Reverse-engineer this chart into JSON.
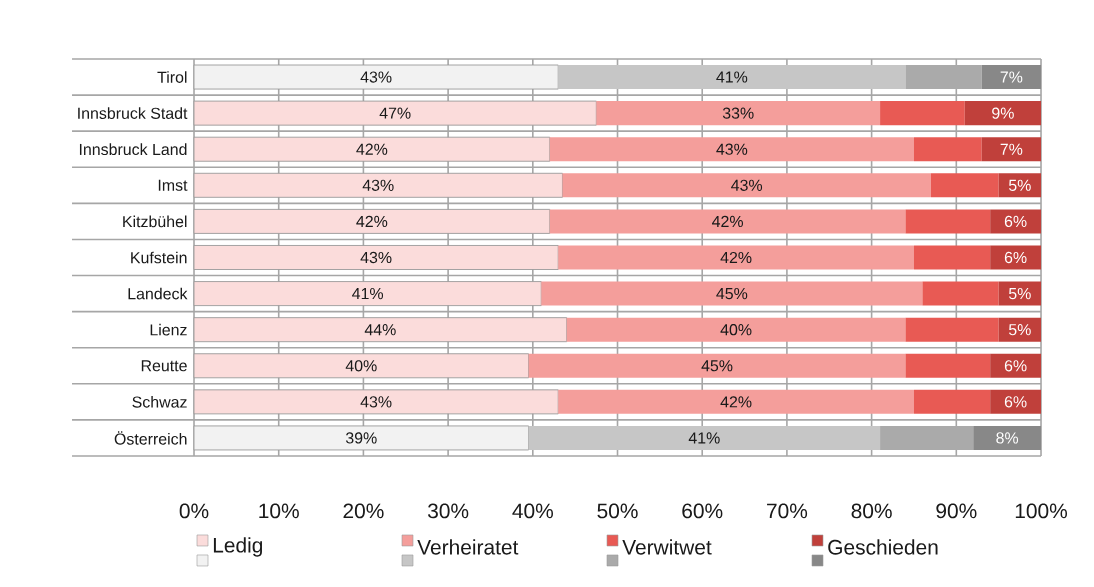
{
  "chart_data": {
    "type": "bar",
    "orientation": "horizontal",
    "stacked": true,
    "categories": [
      "Tirol",
      "Innsbruck Stadt",
      "Innsbruck Land",
      "Imst",
      "Kitzbühel",
      "Kufstein",
      "Landeck",
      "Lienz",
      "Reutte",
      "Schwaz",
      "Österreich"
    ],
    "series": [
      {
        "name": "Ledig",
        "color": "#fbdcdb",
        "colors": [
          "#f2f2f2",
          "#fbdcdb",
          "#fbdcdb",
          "#fbdcdb",
          "#fbdcdb",
          "#fbdcdb",
          "#fbdcdb",
          "#fbdcdb",
          "#fbdcdb",
          "#fbdcdb",
          "#f2f2f2"
        ],
        "values": [
          43,
          47.5,
          42,
          43.5,
          42,
          43,
          41,
          44,
          39.5,
          43,
          39.5
        ],
        "value_labels": [
          "43%",
          "47%",
          "42%",
          "43%",
          "42%",
          "43%",
          "41%",
          "44%",
          "40%",
          "43%",
          "39%"
        ]
      },
      {
        "name": "Verheiratet",
        "color": "#f49e9b",
        "colors": [
          "#c6c6c6",
          "#f49e9b",
          "#f49e9b",
          "#f49e9b",
          "#f49e9b",
          "#f49e9b",
          "#f49e9b",
          "#f49e9b",
          "#f49e9b",
          "#f49e9b",
          "#c6c6c6"
        ],
        "values": [
          41,
          33.5,
          43,
          43.5,
          42,
          42,
          45,
          40,
          44.5,
          42,
          41.5
        ],
        "value_labels": [
          "41%",
          "33%",
          "43%",
          "43%",
          "42%",
          "42%",
          "45%",
          "40%",
          "45%",
          "42%",
          "41%"
        ]
      },
      {
        "name": "Verwitwet",
        "color": "#e85a54",
        "colors": [
          "#aaaaaa",
          "#e85a54",
          "#e85a54",
          "#e85a54",
          "#e85a54",
          "#e85a54",
          "#e85a54",
          "#e85a54",
          "#e85a54",
          "#e85a54",
          "#aaaaaa"
        ],
        "values": [
          9,
          10,
          8,
          8,
          10,
          9,
          9,
          11,
          10,
          9,
          11
        ]
      },
      {
        "name": "Geschieden",
        "color": "#c0403b",
        "colors": [
          "#888888",
          "#c0403b",
          "#c0403b",
          "#c0403b",
          "#c0403b",
          "#c0403b",
          "#c0403b",
          "#c0403b",
          "#c0403b",
          "#c0403b",
          "#888888"
        ],
        "values": [
          7,
          9,
          7,
          5,
          6,
          6,
          5,
          5,
          6,
          6,
          8
        ],
        "value_labels": [
          "7%",
          "9%",
          "7%",
          "5%",
          "6%",
          "6%",
          "5%",
          "5%",
          "6%",
          "6%",
          "8%"
        ]
      }
    ],
    "xlim": [
      0,
      100
    ],
    "xticks": [
      {
        "value": 0,
        "label": "0%"
      },
      {
        "value": 10,
        "label": "10%"
      },
      {
        "value": 20,
        "label": "20%"
      },
      {
        "value": 30,
        "label": "30%"
      },
      {
        "value": 40,
        "label": "40%"
      },
      {
        "value": 50,
        "label": "50%"
      },
      {
        "value": 60,
        "label": "60%"
      },
      {
        "value": 70,
        "label": "70%"
      },
      {
        "value": 80,
        "label": "80%"
      },
      {
        "value": 90,
        "label": "90%"
      },
      {
        "value": 100,
        "label": "100%"
      }
    ],
    "grid": true,
    "legend": "bottom"
  }
}
